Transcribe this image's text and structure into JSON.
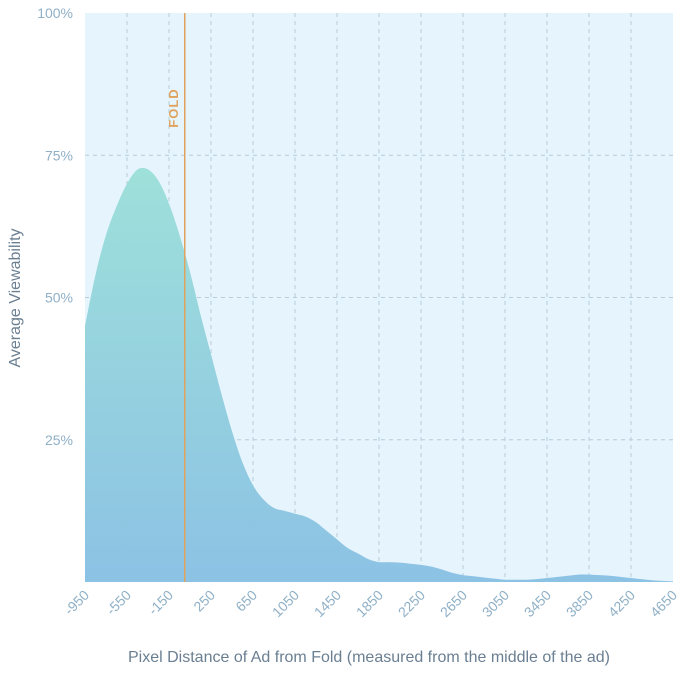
{
  "chart_data": {
    "type": "area",
    "xlabel": "Pixel Distance of Ad from Fold (measured from the middle of the ad)",
    "ylabel": "Average Viewability",
    "x_ticks": [
      "-950",
      "-550",
      "-150",
      "250",
      "650",
      "1050",
      "1450",
      "1850",
      "2250",
      "2650",
      "3050",
      "3450",
      "3850",
      "4250",
      "4650"
    ],
    "y_ticks": [
      "25%",
      "50%",
      "75%",
      "100%"
    ],
    "xlim": [
      -950,
      4650
    ],
    "ylim": [
      0,
      100
    ],
    "grid": true,
    "fold": {
      "label": "FOLD",
      "x": 0
    },
    "series": [
      {
        "x": [
          -950,
          -850,
          -750,
          -650,
          -550,
          -450,
          -350,
          -250,
          -150,
          -50,
          50,
          150,
          250,
          350,
          450,
          550,
          650,
          750,
          850,
          950,
          1050,
          1150,
          1250,
          1350,
          1450,
          1550,
          1650,
          1750,
          1850,
          1950,
          2050,
          2150,
          2250,
          2350,
          2450,
          2550,
          2650,
          2750,
          2850,
          2950,
          3050,
          3150,
          3250,
          3350,
          3450,
          3550,
          3650,
          3750,
          3850,
          3950,
          4050,
          4150,
          4250,
          4350,
          4450,
          4550,
          4650
        ],
        "values": [
          45,
          54,
          61,
          66,
          70,
          72.5,
          72.5,
          70.5,
          66.5,
          61,
          54.5,
          47,
          40,
          33,
          26.5,
          21,
          17,
          14.5,
          13,
          12.5,
          12,
          11.5,
          10.5,
          9,
          7.5,
          6,
          5,
          4,
          3.5,
          3.5,
          3.4,
          3.2,
          3,
          2.7,
          2.2,
          1.6,
          1.2,
          1,
          0.8,
          0.6,
          0.4,
          0.4,
          0.4,
          0.5,
          0.7,
          0.9,
          1.1,
          1.3,
          1.3,
          1.2,
          1.1,
          0.9,
          0.7,
          0.5,
          0.3,
          0.2,
          0.1
        ]
      }
    ],
    "colors": {
      "background": "#e6f4fd",
      "area_top": "#9ee0da",
      "area_bottom": "#8cc2e4",
      "grid": "#b7cdd8",
      "fold_line": "#e0a35d",
      "tick_text": "#8fb0c7",
      "axis_title": "#6a7f92"
    }
  }
}
